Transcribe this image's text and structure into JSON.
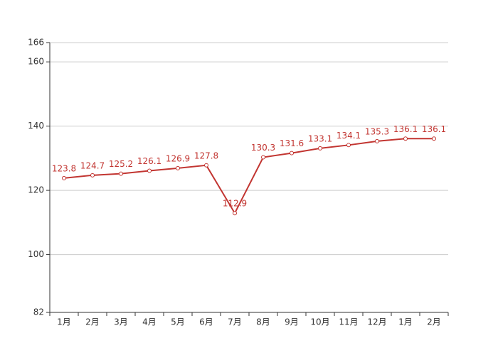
{
  "chart_data": {
    "type": "line",
    "categories": [
      "1月",
      "2月",
      "3月",
      "4月",
      "5月",
      "6月",
      "7月",
      "8月",
      "9月",
      "10月",
      "11月",
      "12月",
      "1月",
      "2月"
    ],
    "values": [
      123.8,
      124.7,
      125.2,
      126.1,
      126.9,
      127.8,
      112.9,
      130.3,
      131.6,
      133.1,
      134.1,
      135.3,
      136.1,
      136.1
    ],
    "color": "#c23531",
    "ylim": [
      82,
      166
    ],
    "yticks": [
      82,
      100,
      120,
      140,
      160,
      166
    ],
    "grid": true
  }
}
